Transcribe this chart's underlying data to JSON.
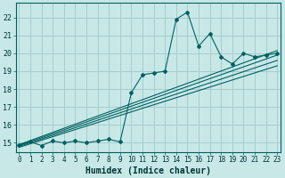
{
  "xlabel": "Humidex (Indice chaleur)",
  "bg_color": "#c8e8e8",
  "grid_color": "#a8cccc",
  "line_color": "#006060",
  "x_ticks": [
    0,
    1,
    2,
    3,
    4,
    5,
    6,
    7,
    8,
    9,
    10,
    11,
    12,
    13,
    14,
    15,
    16,
    17,
    18,
    19,
    20,
    21,
    22,
    23
  ],
  "y_ticks": [
    15,
    16,
    17,
    18,
    19,
    20,
    21,
    22
  ],
  "ylim": [
    14.5,
    22.8
  ],
  "xlim": [
    -0.3,
    23.3
  ],
  "main_series": [
    [
      0,
      14.9
    ],
    [
      1,
      15.05
    ],
    [
      2,
      14.85
    ],
    [
      3,
      15.1
    ],
    [
      4,
      15.0
    ],
    [
      5,
      15.1
    ],
    [
      6,
      15.0
    ],
    [
      7,
      15.1
    ],
    [
      8,
      15.2
    ],
    [
      9,
      15.05
    ],
    [
      10,
      17.8
    ],
    [
      11,
      18.8
    ],
    [
      12,
      18.9
    ],
    [
      13,
      19.0
    ],
    [
      14,
      21.9
    ],
    [
      15,
      22.3
    ],
    [
      16,
      20.4
    ],
    [
      17,
      21.1
    ],
    [
      18,
      19.8
    ],
    [
      19,
      19.4
    ],
    [
      20,
      20.0
    ],
    [
      21,
      19.8
    ],
    [
      22,
      19.9
    ],
    [
      23,
      20.0
    ]
  ],
  "regression_lines": [
    {
      "start_x": 0,
      "start_y": 14.75,
      "end_x": 23,
      "end_y": 19.3
    },
    {
      "start_x": 0,
      "start_y": 14.8,
      "end_x": 23,
      "end_y": 19.6
    },
    {
      "start_x": 0,
      "start_y": 14.85,
      "end_x": 23,
      "end_y": 19.9
    },
    {
      "start_x": 0,
      "start_y": 14.9,
      "end_x": 23,
      "end_y": 20.15
    }
  ],
  "tick_fontsize": 5.5,
  "xlabel_fontsize": 7
}
